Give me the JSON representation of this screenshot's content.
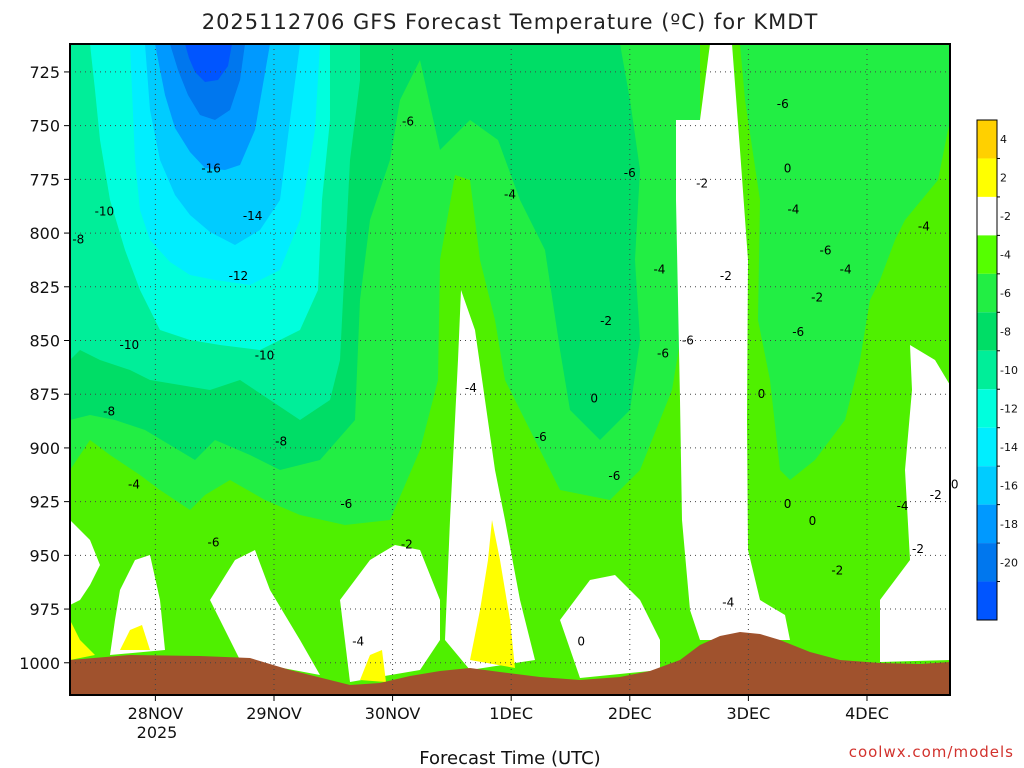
{
  "chart_data": {
    "type": "heatmap",
    "title": "2025112706 GFS Forecast Temperature (ºC) for KMDT",
    "xlabel": "Forecast Time (UTC)",
    "ylabel": "",
    "y_axis": {
      "ticks": [
        "725",
        "750",
        "775",
        "800",
        "825",
        "850",
        "875",
        "900",
        "925",
        "950",
        "975",
        "1000"
      ],
      "range": [
        712,
        1015
      ],
      "inverted": true
    },
    "x_axis": {
      "ticks": [
        "28NOV",
        "29NOV",
        "30NOV",
        "1DEC",
        "2DEC",
        "3DEC",
        "4DEC"
      ],
      "year_label": "2025",
      "range_days": [
        -0.72,
        6.7
      ]
    },
    "colorbar": {
      "labels": [
        "4",
        "2",
        "-2",
        "-4",
        "-6",
        "-8",
        "-10",
        "-12",
        "-14",
        "-16",
        "-18",
        "-20"
      ],
      "colors": [
        "#FFD000",
        "#FFFF00",
        "#FFFFFF",
        "#55FF00",
        "#22EE44",
        "#00DD66",
        "#00EE99",
        "#00FFDD",
        "#00EEFF",
        "#00CCFF",
        "#0099FF",
        "#0077EE",
        "#0055FF"
      ]
    },
    "contour_labels": [
      {
        "text": "-16",
        "day": 0.47,
        "p": 770
      },
      {
        "text": "-14",
        "day": 0.82,
        "p": 792
      },
      {
        "text": "-12",
        "day": 0.7,
        "p": 820
      },
      {
        "text": "-10",
        "day": -0.43,
        "p": 790
      },
      {
        "text": "-10",
        "day": -0.22,
        "p": 852
      },
      {
        "text": "-10",
        "day": 0.92,
        "p": 857
      },
      {
        "text": "-8",
        "day": -0.65,
        "p": 803
      },
      {
        "text": "-8",
        "day": -0.39,
        "p": 883
      },
      {
        "text": "-8",
        "day": 1.06,
        "p": 897
      },
      {
        "text": "-6",
        "day": 2.13,
        "p": 748
      },
      {
        "text": "-6",
        "day": 1.61,
        "p": 926
      },
      {
        "text": "-6",
        "day": 0.49,
        "p": 944
      },
      {
        "text": "-6",
        "day": 4.0,
        "p": 772
      },
      {
        "text": "-6",
        "day": 4.28,
        "p": 856
      },
      {
        "text": "-6",
        "day": 3.25,
        "p": 895
      },
      {
        "text": "-6",
        "day": 3.87,
        "p": 913
      },
      {
        "text": "-6",
        "day": 4.49,
        "p": 850
      },
      {
        "text": "-6",
        "day": 5.29,
        "p": 740
      },
      {
        "text": "-6",
        "day": 5.65,
        "p": 808
      },
      {
        "text": "-6",
        "day": 5.42,
        "p": 846
      },
      {
        "text": "-4",
        "day": -0.18,
        "p": 917
      },
      {
        "text": "-4",
        "day": 2.99,
        "p": 782
      },
      {
        "text": "-4",
        "day": 2.66,
        "p": 872
      },
      {
        "text": "-4",
        "day": 4.25,
        "p": 817
      },
      {
        "text": "-4",
        "day": 5.38,
        "p": 789
      },
      {
        "text": "-4",
        "day": 5.82,
        "p": 817
      },
      {
        "text": "-4",
        "day": 6.48,
        "p": 797
      },
      {
        "text": "-4",
        "day": 6.3,
        "p": 927
      },
      {
        "text": "-4",
        "day": 4.83,
        "p": 972
      },
      {
        "text": "-4",
        "day": 1.71,
        "p": 990
      },
      {
        "text": "-2",
        "day": 4.61,
        "p": 777
      },
      {
        "text": "-2",
        "day": 4.81,
        "p": 820
      },
      {
        "text": "-2",
        "day": 5.58,
        "p": 830
      },
      {
        "text": "-2",
        "day": 3.8,
        "p": 841
      },
      {
        "text": "-2",
        "day": 2.12,
        "p": 945
      },
      {
        "text": "-2",
        "day": 5.75,
        "p": 957
      },
      {
        "text": "-2",
        "day": 6.58,
        "p": 922
      },
      {
        "text": "-2",
        "day": 6.43,
        "p": 947
      },
      {
        "text": "0",
        "day": 5.33,
        "p": 770
      },
      {
        "text": "0",
        "day": 3.7,
        "p": 877
      },
      {
        "text": "0",
        "day": 5.11,
        "p": 875
      },
      {
        "text": "0",
        "day": 5.33,
        "p": 926
      },
      {
        "text": "0",
        "day": 5.54,
        "p": 934
      },
      {
        "text": "0",
        "day": 3.59,
        "p": 990
      },
      {
        "text": "0",
        "day": 6.74,
        "p": 917
      }
    ]
  },
  "credit": "coolwx.com/models"
}
